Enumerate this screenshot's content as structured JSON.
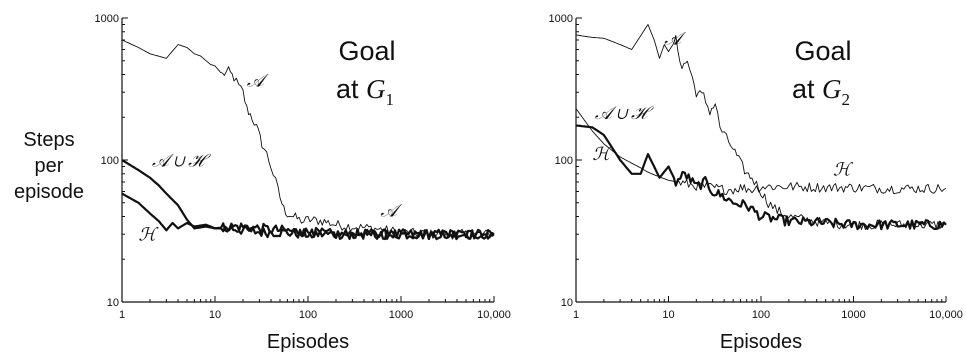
{
  "ylabel_lines": [
    "Steps",
    "per",
    "episode"
  ],
  "chart_data": [
    {
      "type": "line",
      "xlabel": "Episodes",
      "x_scale": "log",
      "y_scale": "log",
      "xlim": [
        1,
        10000
      ],
      "ylim": [
        10,
        1000
      ],
      "x_ticks": [
        "1",
        "10",
        "100",
        "1000",
        "10,000"
      ],
      "y_ticks": [
        "10",
        "100",
        "1000"
      ],
      "grid": false,
      "annotation": {
        "line1": "Goal",
        "line2_prefix": "at",
        "symbol": "G",
        "subscript": "1"
      },
      "series": [
        {
          "name": "𝒜",
          "weight": "thin",
          "x": [
            1,
            1.5,
            2,
            3,
            4,
            5,
            6,
            7,
            8,
            9,
            10,
            12,
            14,
            16,
            18,
            20,
            22,
            25,
            28,
            32,
            36,
            40,
            45,
            50,
            55,
            60,
            70,
            80,
            90,
            100,
            150,
            200,
            300,
            500,
            700,
            1000,
            2000,
            5000,
            10000
          ],
          "y": [
            700,
            620,
            560,
            520,
            650,
            620,
            560,
            540,
            500,
            470,
            460,
            400,
            420,
            380,
            330,
            300,
            230,
            200,
            170,
            130,
            110,
            90,
            70,
            55,
            45,
            42,
            40,
            38,
            37,
            38,
            37,
            35,
            34,
            33,
            32,
            31,
            30,
            30,
            30
          ]
        },
        {
          "name": "𝒜 ∪ ℋ",
          "weight": "thick",
          "x": [
            1,
            1.5,
            2,
            2.5,
            3,
            4,
            5,
            6,
            8,
            10,
            15,
            20,
            30,
            50,
            100,
            200,
            500,
            1000,
            2000,
            5000,
            10000
          ],
          "y": [
            100,
            85,
            75,
            66,
            58,
            48,
            38,
            33,
            34,
            33,
            33,
            32,
            31,
            31,
            30,
            30,
            30,
            30,
            30,
            30,
            30
          ]
        },
        {
          "name": "ℋ",
          "weight": "thick",
          "x": [
            1,
            1.5,
            2,
            2.5,
            3,
            3.5,
            4,
            5,
            6,
            8,
            10,
            15,
            20,
            30,
            50,
            100,
            200,
            500,
            1000,
            10000
          ],
          "y": [
            58,
            50,
            42,
            37,
            32,
            36,
            33,
            36,
            34,
            35,
            33,
            34,
            34,
            33,
            32,
            31,
            30,
            30,
            30,
            30
          ]
        }
      ],
      "curve_labels": [
        {
          "text": "𝒜",
          "x": 22,
          "y": 330
        },
        {
          "text": "𝒜 ∪ ℋ",
          "x": 2.1,
          "y": 90
        },
        {
          "text": "ℋ",
          "x": 1.5,
          "y": 27
        },
        {
          "text": "𝒜",
          "x": 600,
          "y": 40
        }
      ]
    },
    {
      "type": "line",
      "xlabel": "Episodes",
      "x_scale": "log",
      "y_scale": "log",
      "xlim": [
        1,
        10000
      ],
      "ylim": [
        10,
        1000
      ],
      "x_ticks": [
        "1",
        "10",
        "100",
        "1000",
        "10,000"
      ],
      "y_ticks": [
        "10",
        "100",
        "1000"
      ],
      "grid": false,
      "annotation": {
        "line1": "Goal",
        "line2_prefix": "at",
        "symbol": "G",
        "subscript": "2"
      },
      "series": [
        {
          "name": "𝒜",
          "weight": "thin",
          "x": [
            1,
            1.5,
            2,
            3,
            4,
            5,
            6,
            7,
            8,
            9,
            10,
            12,
            14,
            16,
            18,
            20,
            24,
            28,
            32,
            36,
            40,
            50,
            60,
            70,
            80,
            100,
            120,
            150,
            200,
            300,
            500,
            1000,
            2000,
            5000,
            10000
          ],
          "y": [
            760,
            730,
            720,
            650,
            600,
            750,
            900,
            700,
            520,
            650,
            580,
            700,
            450,
            500,
            380,
            300,
            280,
            220,
            250,
            170,
            150,
            120,
            95,
            80,
            75,
            60,
            50,
            44,
            40,
            38,
            36,
            35,
            35,
            35,
            35
          ]
        },
        {
          "name": "𝒜 ∪ ℋ",
          "weight": "thick",
          "x": [
            1,
            1.5,
            2,
            3,
            4,
            5,
            6,
            8,
            10,
            12,
            15,
            20,
            25,
            30,
            40,
            50,
            70,
            100,
            200,
            500,
            1000,
            2000,
            5000,
            10000
          ],
          "y": [
            175,
            170,
            150,
            100,
            80,
            80,
            110,
            75,
            90,
            70,
            80,
            65,
            70,
            60,
            55,
            50,
            48,
            40,
            37,
            36,
            35,
            35,
            35,
            35
          ]
        },
        {
          "name": "ℋ",
          "weight": "thin",
          "x": [
            1,
            1.5,
            2,
            3,
            4,
            5,
            6,
            8,
            10,
            15,
            20,
            30,
            40,
            50,
            60,
            80,
            100,
            200,
            500,
            1000,
            2000,
            5000,
            10000
          ],
          "y": [
            230,
            160,
            130,
            105,
            95,
            88,
            82,
            76,
            72,
            68,
            66,
            64,
            62,
            62,
            64,
            62,
            65,
            65,
            64,
            64,
            63,
            63,
            63
          ]
        }
      ],
      "curve_labels": [
        {
          "text": "𝒜",
          "x": 9,
          "y": 650
        },
        {
          "text": "𝒜 ∪ ℋ",
          "x": 1.6,
          "y": 195
        },
        {
          "text": "ℋ",
          "x": 1.5,
          "y": 100
        },
        {
          "text": "ℋ",
          "x": 600,
          "y": 78
        }
      ]
    }
  ]
}
